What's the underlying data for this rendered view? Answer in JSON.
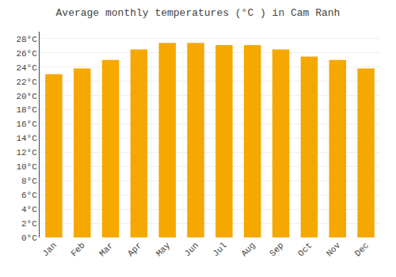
{
  "chart_data": {
    "type": "bar",
    "title": "Average monthly temperatures (°C ) in Cam Ranh",
    "categories": [
      "Jan",
      "Feb",
      "Mar",
      "Apr",
      "May",
      "Jun",
      "Jul",
      "Aug",
      "Sep",
      "Oct",
      "Nov",
      "Dec"
    ],
    "values": [
      23.0,
      23.8,
      25.0,
      26.5,
      27.4,
      27.4,
      27.1,
      27.1,
      26.5,
      25.5,
      25.0,
      23.8
    ],
    "color": "#F5A800",
    "ylim": [
      0,
      29
    ],
    "yticks": [
      {
        "value": 0,
        "label": "0°C"
      },
      {
        "value": 2,
        "label": "2°C"
      },
      {
        "value": 4,
        "label": "4°C"
      },
      {
        "value": 6,
        "label": "6°C"
      },
      {
        "value": 8,
        "label": "8°C"
      },
      {
        "value": 10,
        "label": "10°C"
      },
      {
        "value": 12,
        "label": "12°C"
      },
      {
        "value": 14,
        "label": "14°C"
      },
      {
        "value": 16,
        "label": "16°C"
      },
      {
        "value": 18,
        "label": "18°C"
      },
      {
        "value": 20,
        "label": "20°C"
      },
      {
        "value": 22,
        "label": "22°C"
      },
      {
        "value": 24,
        "label": "24°C"
      },
      {
        "value": 26,
        "label": "26°C"
      },
      {
        "value": 28,
        "label": "28°C"
      }
    ],
    "grid": true
  }
}
